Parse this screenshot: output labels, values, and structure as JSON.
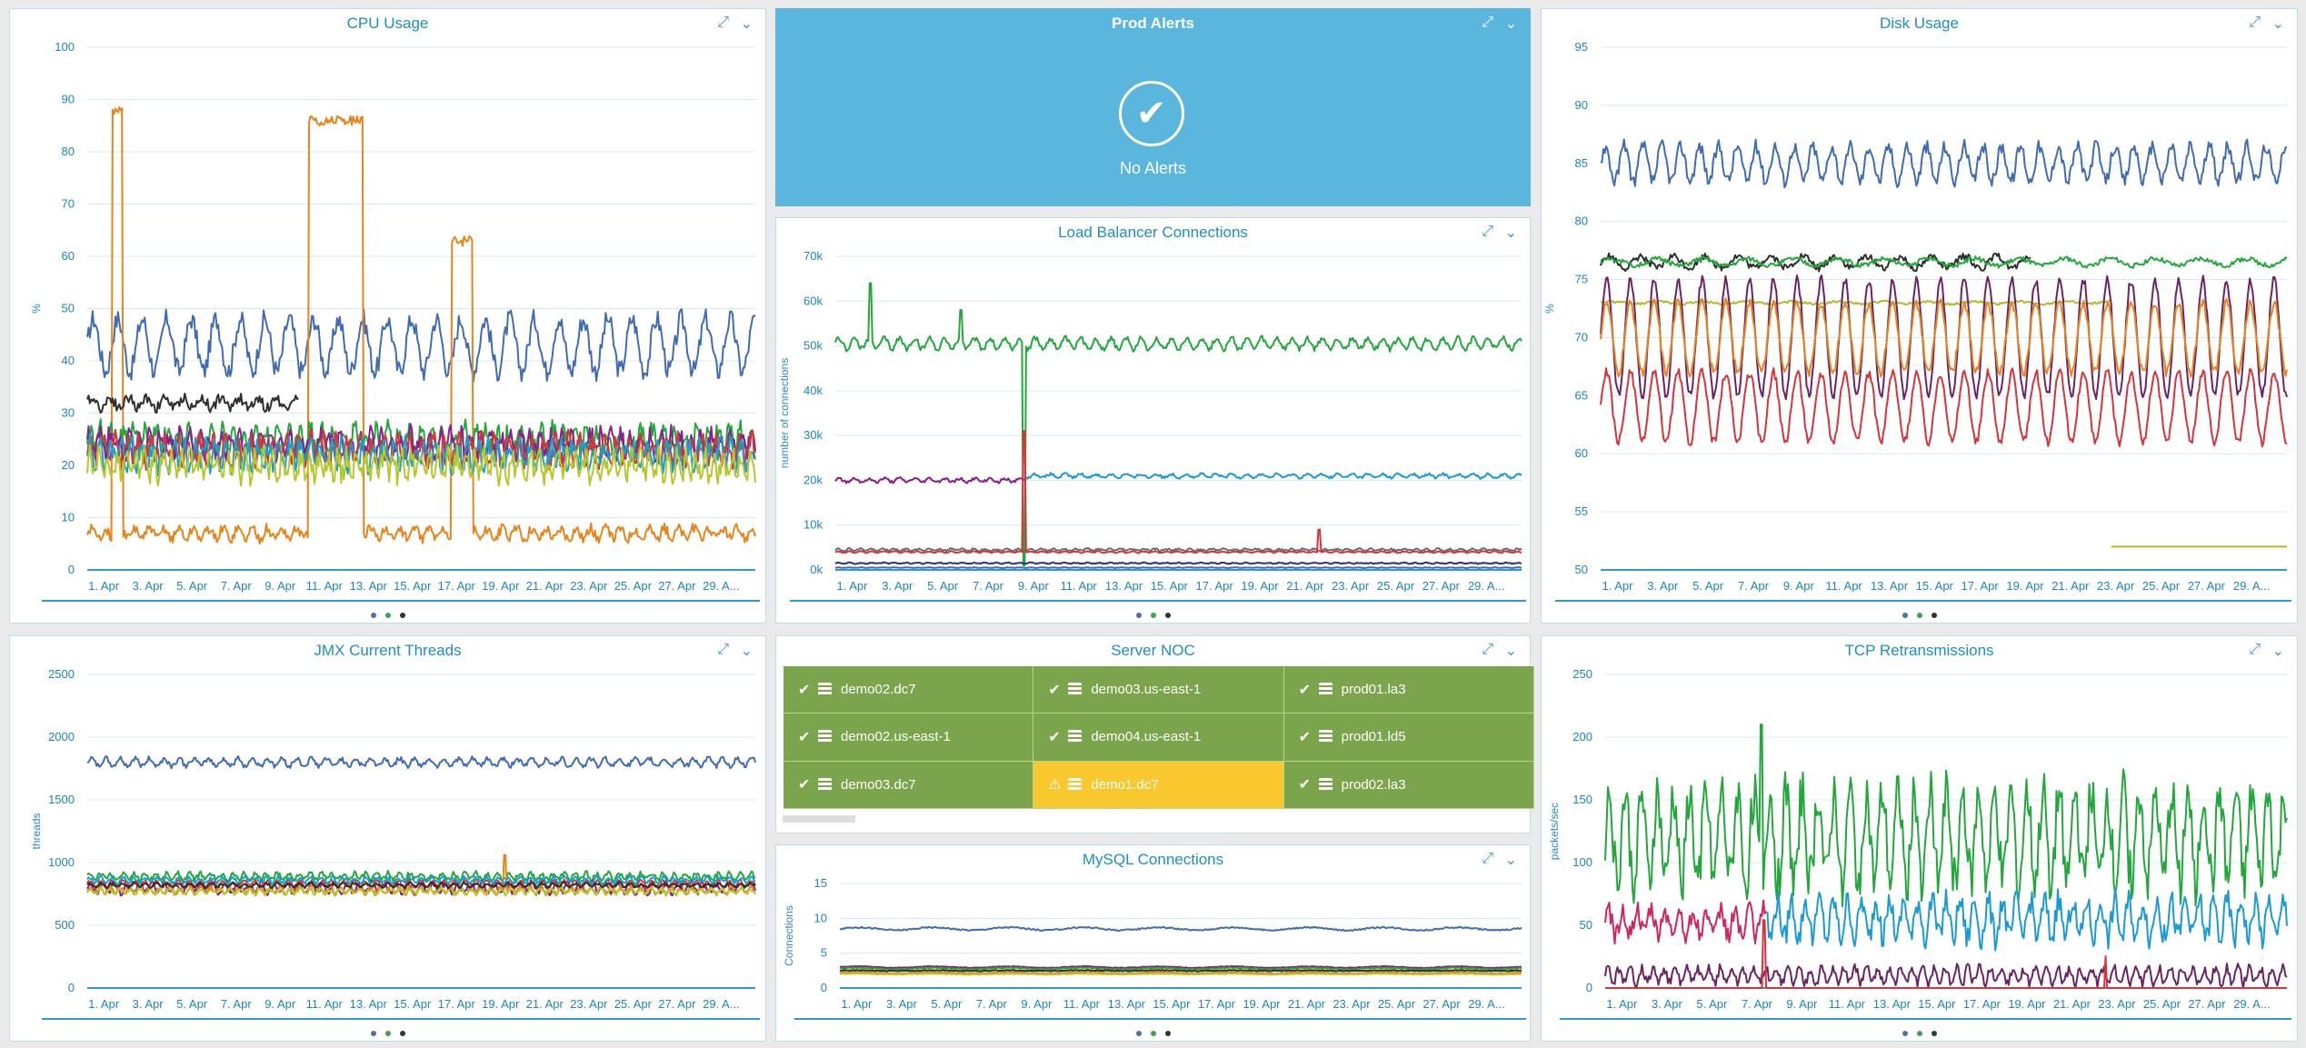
{
  "dates": [
    "1. Apr",
    "3. Apr",
    "5. Apr",
    "7. Apr",
    "9. Apr",
    "11. Apr",
    "13. Apr",
    "15. Apr",
    "17. Apr",
    "19. Apr",
    "21. Apr",
    "23. Apr",
    "25. Apr",
    "27. Apr",
    "29. A..."
  ],
  "page_dots": [
    "#4f6fb5",
    "#3aa84a",
    "#333333"
  ],
  "panels": {
    "cpu": {
      "title": "CPU Usage"
    },
    "alerts": {
      "title": "Prod Alerts",
      "message": "No Alerts"
    },
    "lb": {
      "title": "Load Balancer Connections"
    },
    "disk": {
      "title": "Disk Usage"
    },
    "jmx": {
      "title": "JMX Current Threads"
    },
    "noc": {
      "title": "Server NOC"
    },
    "mysql": {
      "title": "MySQL Connections"
    },
    "tcp": {
      "title": "TCP Retransmissions"
    }
  },
  "noc": {
    "servers": [
      {
        "name": "demo02.dc7",
        "status": "ok"
      },
      {
        "name": "demo03.us-east-1",
        "status": "ok"
      },
      {
        "name": "prod01.la3",
        "status": "ok"
      },
      {
        "name": "demo02.us-east-1",
        "status": "ok"
      },
      {
        "name": "demo04.us-east-1",
        "status": "ok"
      },
      {
        "name": "prod01.ld5",
        "status": "ok"
      },
      {
        "name": "demo03.dc7",
        "status": "ok"
      },
      {
        "name": "demo1.dc7",
        "status": "warning"
      },
      {
        "name": "prod02.la3",
        "status": "ok"
      }
    ]
  },
  "chart_data": [
    {
      "type": "line",
      "title": "CPU Usage",
      "ylabel": "%",
      "ylim": [
        0,
        100
      ],
      "yticks": [
        0,
        10,
        20,
        30,
        40,
        50,
        60,
        70,
        80,
        90,
        100
      ],
      "x_start_day": 0,
      "x_end_day": 30.3,
      "series": [
        {
          "color": "#3f6cb4",
          "base": 43,
          "amp": 5,
          "freq": 0.9,
          "noise": 2
        },
        {
          "color": "#e98418",
          "base": 7,
          "amp": 1,
          "freq": 1.5,
          "noise": 1,
          "spikes": [
            [
              1.1,
              1.6,
              88
            ],
            [
              10,
              12.5,
              86
            ],
            [
              16.5,
              17.5,
              63
            ]
          ]
        },
        {
          "color": "#2f2f2f",
          "base": 32,
          "amp": 1,
          "freq": 1.2,
          "noise": 1,
          "end_day": 9.6
        },
        {
          "color": "#1faa3a",
          "base": 25,
          "amp": 2,
          "freq": 2,
          "noise": 2
        },
        {
          "color": "#8a1f8f",
          "base": 24,
          "amp": 2,
          "freq": 2.2,
          "noise": 2
        },
        {
          "color": "#d8333a",
          "base": 23,
          "amp": 2,
          "freq": 1.8,
          "noise": 2
        },
        {
          "color": "#17a1cf",
          "base": 22,
          "amp": 2,
          "freq": 2.1,
          "noise": 2
        },
        {
          "color": "#b6c82a",
          "base": 20,
          "amp": 2,
          "freq": 2.4,
          "noise": 2
        }
      ]
    },
    {
      "type": "line",
      "title": "Load Balancer Connections",
      "ylabel": "number of connections",
      "ylim": [
        0,
        70000
      ],
      "yticks": [
        0,
        10000,
        20000,
        30000,
        40000,
        50000,
        60000,
        70000
      ],
      "ytick_labels": [
        "0k",
        "10k",
        "20k",
        "30k",
        "40k",
        "50k",
        "60k",
        "70k"
      ],
      "x_start_day": 0,
      "x_end_day": 30.3,
      "series": [
        {
          "color": "#24a83c",
          "base": 50500,
          "amp": 1200,
          "freq": 1.5,
          "noise": 600,
          "spikes": [
            [
              1.5,
              1.6,
              64000
            ],
            [
              5.5,
              5.6,
              58000
            ],
            [
              8.3,
              8.4,
              1000
            ]
          ]
        },
        {
          "color": "#8b1d7e",
          "base": 20000,
          "amp": 400,
          "freq": 1.5,
          "noise": 300,
          "end_day": 8.4
        },
        {
          "color": "#1a9ad6",
          "base": 21000,
          "amp": 400,
          "freq": 1.5,
          "noise": 300,
          "start_day": 8.4
        },
        {
          "color": "#6b6b6b",
          "base": 4500,
          "amp": 200,
          "freq": 2,
          "noise": 200
        },
        {
          "color": "#d8333a",
          "base": 4000,
          "amp": 150,
          "freq": 2,
          "noise": 100,
          "spikes": [
            [
              8.3,
              8.4,
              31000
            ],
            [
              21.3,
              21.4,
              9000
            ]
          ]
        },
        {
          "color": "#2f2f7f",
          "base": 1500,
          "amp": 100,
          "freq": 2,
          "noise": 100
        },
        {
          "color": "#3f6cb4",
          "base": 500,
          "amp": 50,
          "freq": 2,
          "noise": 50
        }
      ]
    },
    {
      "type": "line",
      "title": "Disk Usage",
      "ylabel": "%",
      "ylim": [
        50,
        95
      ],
      "yticks": [
        50,
        55,
        60,
        65,
        70,
        75,
        80,
        85,
        90,
        95
      ],
      "x_start_day": 0,
      "x_end_day": 30.3,
      "series": [
        {
          "color": "#3f6cb4",
          "base": 85,
          "amp": 1.5,
          "freq": 1.2,
          "noise": 0.6
        },
        {
          "color": "#2f2f2f",
          "base": 76.5,
          "amp": 0.5,
          "freq": 0.7,
          "noise": 0.3,
          "end_day": 19
        },
        {
          "color": "#1faa3a",
          "base": 76.5,
          "amp": 0.3,
          "freq": 0.5,
          "noise": 0.2
        },
        {
          "color": "#b6b82a",
          "base": 73,
          "amp": 0.1,
          "freq": 0.5,
          "noise": 0.1,
          "end_day": 22.5
        },
        {
          "color": "#b6b82a",
          "base": 52,
          "amp": 0,
          "freq": 0.5,
          "noise": 0,
          "start_day": 22.5
        },
        {
          "color": "#6b2366",
          "base": 70,
          "amp": 5,
          "freq": 0.95,
          "noise": 0.4
        },
        {
          "color": "#e98418",
          "base": 70,
          "amp": 3,
          "freq": 0.95,
          "noise": 0.4
        },
        {
          "color": "#d8333a",
          "base": 64,
          "amp": 3,
          "freq": 0.95,
          "noise": 0.4
        }
      ]
    },
    {
      "type": "line",
      "title": "JMX Current Threads",
      "ylabel": "threads",
      "ylim": [
        0,
        2500
      ],
      "yticks": [
        0,
        500,
        1000,
        1500,
        2000,
        2500
      ],
      "x_start_day": 0,
      "x_end_day": 30.3,
      "series": [
        {
          "color": "#3f6cb4",
          "base": 1800,
          "amp": 30,
          "freq": 1.5,
          "noise": 20
        },
        {
          "color": "#1faa3a",
          "base": 890,
          "amp": 25,
          "freq": 2,
          "noise": 20
        },
        {
          "color": "#8b1d7e",
          "base": 800,
          "amp": 40,
          "freq": 1.8,
          "noise": 25
        },
        {
          "color": "#d8333a",
          "base": 830,
          "amp": 25,
          "freq": 2,
          "noise": 15
        },
        {
          "color": "#e98418",
          "base": 780,
          "amp": 25,
          "freq": 2.2,
          "noise": 20,
          "spikes": [
            [
              18.9,
              19.0,
              1060
            ]
          ]
        },
        {
          "color": "#17a1cf",
          "base": 860,
          "amp": 20,
          "freq": 2,
          "noise": 15
        },
        {
          "color": "#b6c82a",
          "base": 770,
          "amp": 20,
          "freq": 2.2,
          "noise": 15
        },
        {
          "color": "#2f2f2f",
          "base": 820,
          "amp": 15,
          "freq": 2,
          "noise": 10
        }
      ]
    },
    {
      "type": "line",
      "title": "MySQL Connections",
      "ylabel": "Connections",
      "ylim": [
        0,
        15
      ],
      "yticks": [
        0,
        5,
        10,
        15
      ],
      "x_start_day": 0,
      "x_end_day": 30.3,
      "series": [
        {
          "color": "#3f6cb4",
          "base": 8.5,
          "amp": 0.2,
          "freq": 0.3,
          "noise": 0.1
        },
        {
          "color": "#8b1d7e",
          "base": 3,
          "amp": 0.1,
          "freq": 0.3,
          "noise": 0.05
        },
        {
          "color": "#e98418",
          "base": 2.2,
          "amp": 0.1,
          "freq": 0.3,
          "noise": 0.05
        },
        {
          "color": "#1faa3a",
          "base": 2.8,
          "amp": 0.1,
          "freq": 0.3,
          "noise": 0.05
        },
        {
          "color": "#2f2f2f",
          "base": 2.5,
          "amp": 0.05,
          "freq": 0.3,
          "noise": 0.05
        },
        {
          "color": "#b6c82a",
          "base": 2,
          "amp": 0.05,
          "freq": 0.3,
          "noise": 0.05
        }
      ]
    },
    {
      "type": "line",
      "title": "TCP Retransmissions",
      "ylabel": "packets/sec",
      "ylim": [
        0,
        250
      ],
      "yticks": [
        0,
        50,
        100,
        150,
        200,
        250
      ],
      "x_start_day": 0,
      "x_end_day": 30.3,
      "series": [
        {
          "color": "#21a83a",
          "base": 120,
          "amp": 35,
          "freq": 1.4,
          "noise": 20,
          "spikes": [
            [
              6.9,
              7.0,
              210
            ]
          ]
        },
        {
          "color": "#d1255f",
          "base": 52,
          "amp": 10,
          "freq": 1.6,
          "noise": 8,
          "end_day": 7.2
        },
        {
          "color": "#1a9ad6",
          "base": 55,
          "amp": 15,
          "freq": 1.6,
          "noise": 10,
          "start_day": 7.2
        },
        {
          "color": "#6b2366",
          "base": 10,
          "amp": 6,
          "freq": 2,
          "noise": 4
        },
        {
          "color": "#d8333a",
          "base": 0,
          "amp": 0,
          "freq": 1,
          "noise": 0,
          "spikes": [
            [
              7.0,
              7.1,
              55
            ],
            [
              22.2,
              22.3,
              25
            ]
          ]
        }
      ]
    }
  ]
}
